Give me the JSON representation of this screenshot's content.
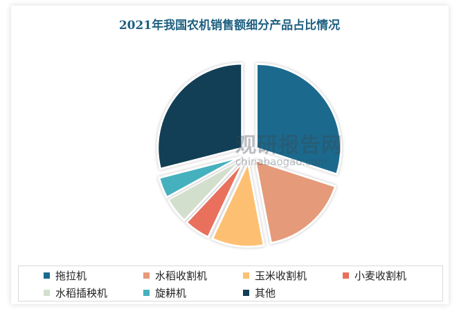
{
  "chart_data": {
    "type": "pie",
    "title": "2021年我国农机销售额细分产品占比情况",
    "categories": [
      "拖拉机",
      "水稻收割机",
      "玉米收割机",
      "小麦收割机",
      "水稻插秧机",
      "旋耕机",
      "其他"
    ],
    "values": [
      30,
      17,
      10,
      5,
      5,
      4,
      29
    ],
    "unit": "%",
    "colors": [
      "#1b6a8e",
      "#e59a7a",
      "#fdc072",
      "#e8705d",
      "#d3dfcd",
      "#45b1be",
      "#123f55"
    ],
    "exploded": true,
    "legend_position": "bottom"
  },
  "watermark": {
    "main": "观研报告网",
    "sub": "chinabaogao.com"
  }
}
